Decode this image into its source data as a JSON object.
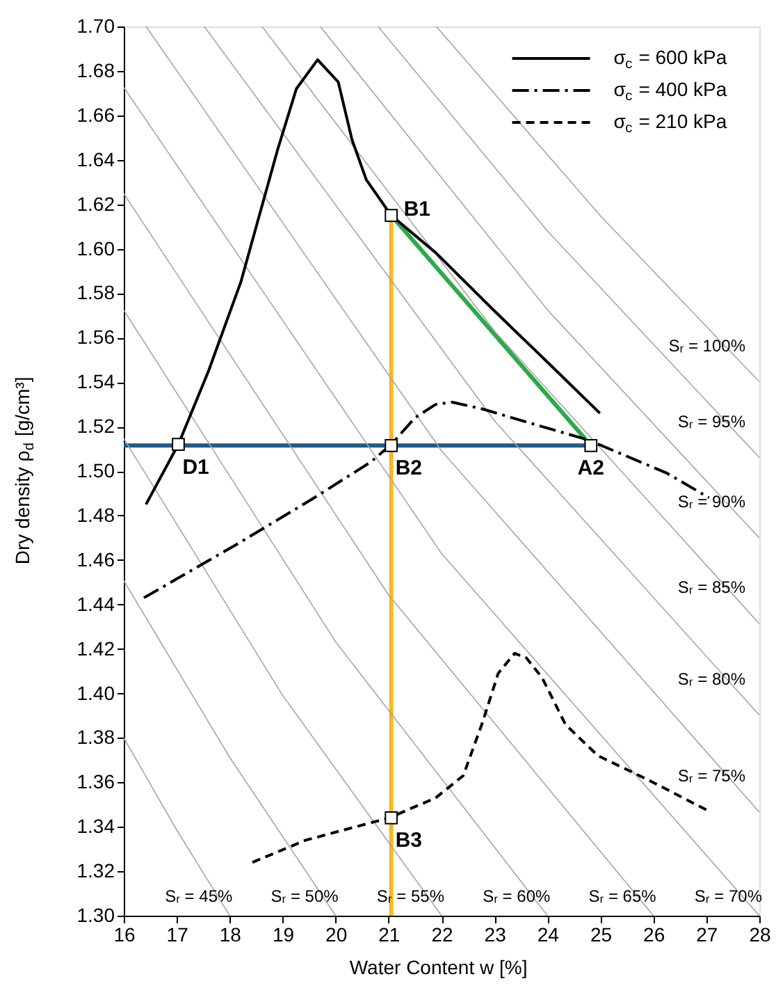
{
  "chart_data": {
    "type": "line",
    "xlabel": "Water  Content w [%]",
    "ylabel": "Dry density ρ$_{d}$ [g/cm³]",
    "xlim": [
      16,
      28
    ],
    "xticks": [
      16,
      17,
      18,
      19,
      20,
      21,
      22,
      23,
      24,
      25,
      26,
      27,
      28
    ],
    "ylim": [
      1.3,
      1.7
    ],
    "yticks": [
      {
        "value": 1.3,
        "label": "1.30"
      },
      {
        "value": 1.32,
        "label": "1.32"
      },
      {
        "value": 1.34,
        "label": "1.34"
      },
      {
        "value": 1.36,
        "label": "1.36"
      },
      {
        "value": 1.38,
        "label": "1.38"
      },
      {
        "value": 1.4,
        "label": "1.40"
      },
      {
        "value": 1.42,
        "label": "1.42"
      },
      {
        "value": 1.44,
        "label": "1.44"
      },
      {
        "value": 1.46,
        "label": "1.46"
      },
      {
        "value": 1.48,
        "label": "1.48"
      },
      {
        "value": 1.5,
        "label": "1.50"
      },
      {
        "value": 1.52,
        "label": "1.52"
      },
      {
        "value": 1.54,
        "label": "1.54"
      },
      {
        "value": 1.56,
        "label": "1.56"
      },
      {
        "value": 1.58,
        "label": "1.58"
      },
      {
        "value": 1.6,
        "label": "1.60"
      },
      {
        "value": 1.62,
        "label": "1.62"
      },
      {
        "value": 1.64,
        "label": "1.64"
      },
      {
        "value": 1.66,
        "label": "1.66"
      },
      {
        "value": 1.68,
        "label": "1.68"
      },
      {
        "value": 1.7,
        "label": "1.70"
      }
    ],
    "grid": false,
    "legend": "top right",
    "series": [
      {
        "name": "σ$_{c}$ = 600 kPa",
        "color": "#000000",
        "line_style": "solid",
        "x": [
          16.42,
          17.03,
          17.6,
          18.21,
          18.56,
          18.91,
          19.26,
          19.66,
          20.05,
          20.31,
          20.58,
          21.05,
          21.9,
          23.0,
          24.0,
          24.99
        ],
        "values": [
          1.485,
          1.512,
          1.545,
          1.585,
          1.615,
          1.645,
          1.672,
          1.685,
          1.675,
          1.649,
          1.631,
          1.615,
          1.598,
          1.572,
          1.549,
          1.526
        ]
      },
      {
        "name": "σ$_{c}$ = 400 kPa",
        "color": "#000000",
        "line_style": "dashdot",
        "x": [
          16.38,
          18.13,
          19.53,
          20.66,
          21.05,
          21.5,
          21.89,
          22.2,
          22.76,
          23.9,
          24.77,
          26.26,
          27.05
        ],
        "values": [
          1.443,
          1.467,
          1.487,
          1.504,
          1.512,
          1.524,
          1.53,
          1.531,
          1.528,
          1.52,
          1.514,
          1.499,
          1.488
        ]
      },
      {
        "name": "σ$_{c}$ = 210 kPa",
        "color": "#000000",
        "line_style": "dashed",
        "x": [
          18.43,
          19.44,
          21.01,
          21.89,
          22.41,
          22.76,
          23.07,
          23.38,
          23.6,
          23.9,
          24.34,
          24.95,
          25.91,
          27.05
        ],
        "values": [
          1.324,
          1.334,
          1.344,
          1.353,
          1.363,
          1.386,
          1.409,
          1.418,
          1.416,
          1.407,
          1.386,
          1.372,
          1.361,
          1.347
        ]
      },
      {
        "color": "#2bab4a",
        "line_style": "solid",
        "x": [
          21.05,
          24.82
        ],
        "values": [
          1.615,
          1.5115
        ]
      },
      {
        "color": "#1f5b85",
        "line_style": "solid",
        "x": [
          16,
          24.82
        ],
        "values": [
          1.5115,
          1.5115
        ]
      },
      {
        "color": "#f7b921",
        "line_style": "solid",
        "x": [
          21.05,
          21.05
        ],
        "values": [
          1.3,
          1.615
        ]
      },
      {
        "color": "#a6a6a6",
        "line_style": "solid",
        "x": [
          16,
          17,
          18
        ],
        "values": [
          1.38,
          1.3385,
          1.3
        ]
      },
      {
        "color": "#a6a6a6",
        "line_style": "solid",
        "x": [
          16,
          18,
          20
        ],
        "values": [
          1.4507,
          1.3712,
          1.3
        ]
      },
      {
        "color": "#a6a6a6",
        "line_style": "solid",
        "x": [
          16,
          19,
          22
        ],
        "values": [
          1.5146,
          1.3991,
          1.3
        ]
      },
      {
        "color": "#a6a6a6",
        "line_style": "solid",
        "x": [
          16,
          20,
          24
        ],
        "values": [
          1.5724,
          1.4232,
          1.3
        ]
      },
      {
        "color": "#a6a6a6",
        "line_style": "solid",
        "x": [
          16,
          21,
          26
        ],
        "values": [
          1.6248,
          1.4443,
          1.3
        ]
      },
      {
        "color": "#a6a6a6",
        "line_style": "solid",
        "x": [
          16,
          22,
          28
        ],
        "values": [
          1.6726,
          1.4629,
          1.3
        ]
      },
      {
        "color": "#a6a6a6",
        "line_style": "solid",
        "x": [
          16.42,
          22,
          28
        ],
        "values": [
          1.7,
          1.5091,
          1.3466
        ]
      },
      {
        "color": "#a6a6a6",
        "line_style": "solid",
        "x": [
          17.52,
          23,
          28
        ],
        "values": [
          1.7,
          1.5226,
          1.3902
        ]
      },
      {
        "color": "#a6a6a6",
        "line_style": "solid",
        "x": [
          18.61,
          23,
          28
        ],
        "values": [
          1.7,
          1.563,
          1.4313
        ]
      },
      {
        "color": "#a6a6a6",
        "line_style": "solid",
        "x": [
          19.71,
          24,
          28
        ],
        "values": [
          1.7,
          1.5725,
          1.4699
        ]
      },
      {
        "color": "#a6a6a6",
        "line_style": "solid",
        "x": [
          20.8,
          24,
          28
        ],
        "values": [
          1.7,
          1.608,
          1.5061
        ]
      },
      {
        "color": "#a6a6a6",
        "line_style": "solid",
        "x": [
          21.9,
          25,
          28
        ],
        "values": [
          1.7,
          1.6148,
          1.5402
        ]
      },
      {
        "type": "scatter",
        "marker": "square",
        "color": "#ffffff",
        "x": [
          17.03,
          21.05,
          21.05,
          24.82,
          21.05
        ],
        "values": [
          1.512,
          1.615,
          1.5115,
          1.5115,
          1.344
        ],
        "value_labels": [
          "D1",
          "B1",
          "B2",
          "A2",
          "B3"
        ]
      }
    ],
    "annotations": [
      "Sᵣ = 45%",
      "Sᵣ = 50%",
      "Sᵣ = 55%",
      "Sᵣ = 60%",
      "Sᵣ = 65%",
      "Sᵣ = 70%",
      "Sᵣ = 75%",
      "Sᵣ = 80%",
      "Sᵣ = 85%",
      "Sᵣ = 90%",
      "Sᵣ = 95%",
      "Sᵣ = 100%"
    ]
  }
}
